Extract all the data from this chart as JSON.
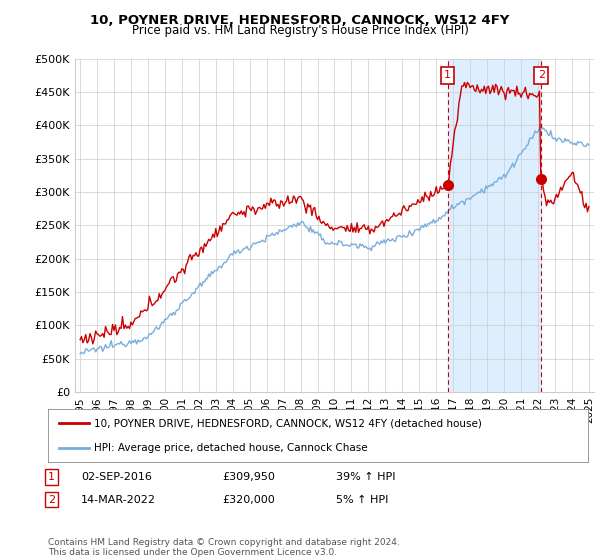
{
  "title": "10, POYNER DRIVE, HEDNESFORD, CANNOCK, WS12 4FY",
  "subtitle": "Price paid vs. HM Land Registry's House Price Index (HPI)",
  "ylabel_ticks": [
    "£0",
    "£50K",
    "£100K",
    "£150K",
    "£200K",
    "£250K",
    "£300K",
    "£350K",
    "£400K",
    "£450K",
    "£500K"
  ],
  "ytick_values": [
    0,
    50000,
    100000,
    150000,
    200000,
    250000,
    300000,
    350000,
    400000,
    450000,
    500000
  ],
  "ylim": [
    0,
    500000
  ],
  "xlim_start": 1994.7,
  "xlim_end": 2025.3,
  "hpi_color": "#7aaddc",
  "price_color": "#cc0000",
  "shade_color": "#ddeeff",
  "marker1_date": 2016.67,
  "marker1_price": 309950,
  "marker2_date": 2022.19,
  "marker2_price": 320000,
  "legend_line1": "10, POYNER DRIVE, HEDNESFORD, CANNOCK, WS12 4FY (detached house)",
  "legend_line2": "HPI: Average price, detached house, Cannock Chase",
  "footnote": "Contains HM Land Registry data © Crown copyright and database right 2024.\nThis data is licensed under the Open Government Licence v3.0.",
  "xtick_years": [
    1995,
    1996,
    1997,
    1998,
    1999,
    2000,
    2001,
    2002,
    2003,
    2004,
    2005,
    2006,
    2007,
    2008,
    2009,
    2010,
    2011,
    2012,
    2013,
    2014,
    2015,
    2016,
    2017,
    2018,
    2019,
    2020,
    2021,
    2022,
    2023,
    2024,
    2025
  ],
  "background_color": "#ffffff",
  "grid_color": "#cccccc"
}
